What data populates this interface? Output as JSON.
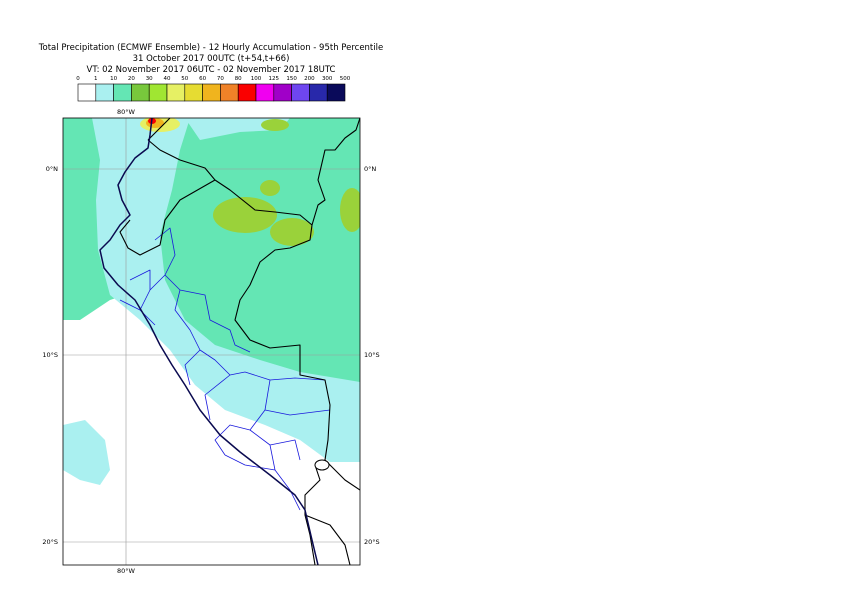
{
  "header": {
    "title": "Total Precipitation (ECMWF Ensemble) - 12 Hourly Accumulation - 95th Percentile",
    "base_time": "31 October 2017 00UTC (t+54,t+66)",
    "valid_time": "VT: 02 November 2017 06UTC - 02 November 2017 18UTC"
  },
  "legend": {
    "levels": [
      0,
      1,
      10,
      20,
      30,
      40,
      50,
      60,
      70,
      80,
      100,
      125,
      150,
      200,
      300,
      500
    ],
    "colors": [
      "#ffffff",
      "#aaf0f0",
      "#64e6b4",
      "#78c83c",
      "#a0e632",
      "#e6f064",
      "#e6dc32",
      "#f0b41e",
      "#f08228",
      "#fa0000",
      "#f000f0",
      "#a000c8",
      "#6e46f0",
      "#2828aa",
      "#0a0a5a"
    ]
  },
  "map": {
    "longitude_labels": [
      "80°W"
    ],
    "latitude_labels": [
      "0°N",
      "10°S",
      "20°S"
    ]
  }
}
